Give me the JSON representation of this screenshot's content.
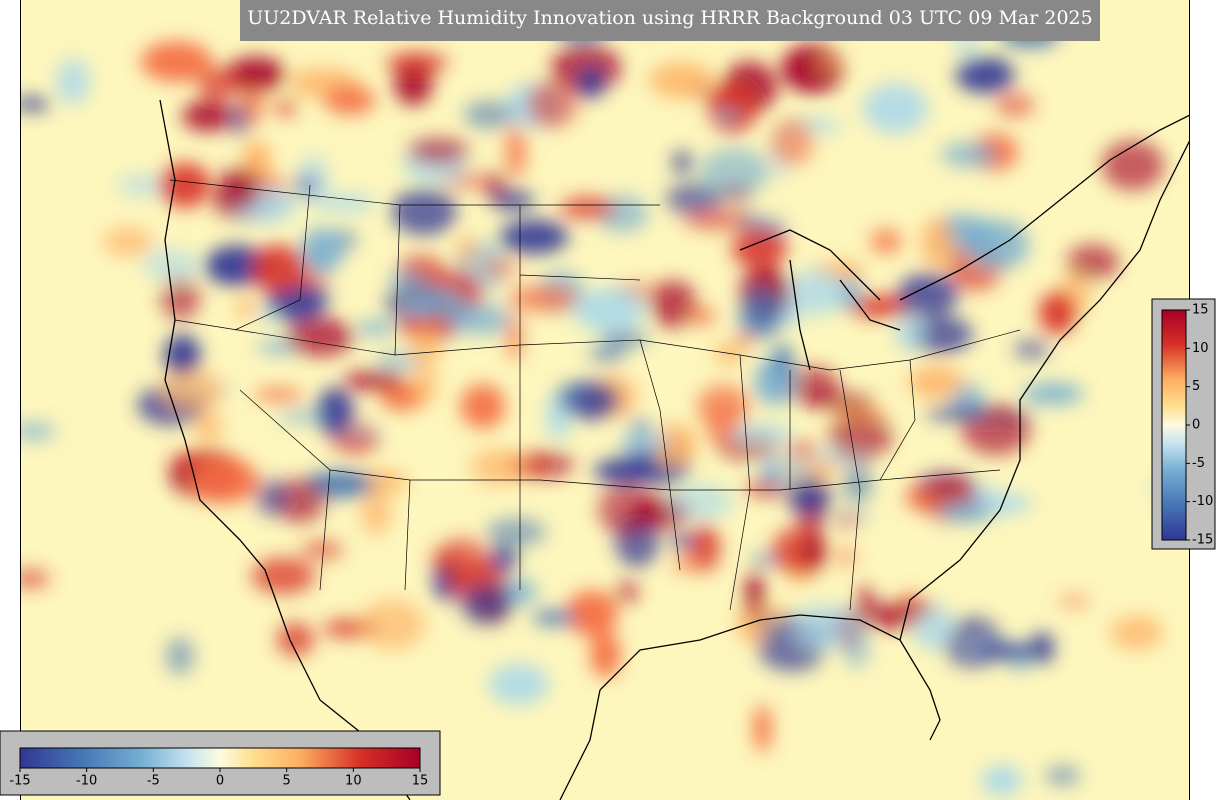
{
  "title": "UU2DVAR Relative Humidity Innovation using HRRR Background 03 UTC 09 Mar 2025",
  "colorbars": [
    {
      "orientation": "horizontal",
      "range": [
        -15,
        15
      ],
      "ticks": [
        -15,
        -10,
        -5,
        0,
        5,
        10,
        15
      ]
    },
    {
      "orientation": "vertical",
      "range": [
        -15,
        15
      ],
      "ticks": [
        15,
        10,
        5,
        0,
        -5,
        -10,
        -15
      ]
    }
  ]
}
